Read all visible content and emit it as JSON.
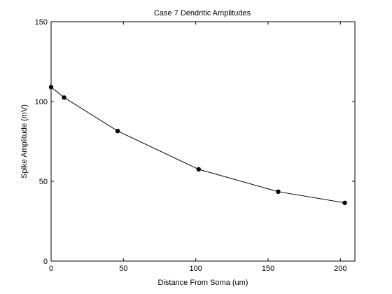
{
  "chart_data": {
    "type": "line",
    "title": "Case 7 Dendritic Amplitudes",
    "xlabel": "Distance From Soma (um)",
    "ylabel": "Spike Amplitude (mV)",
    "xlim": [
      0,
      210
    ],
    "ylim": [
      0,
      150
    ],
    "xticks": [
      "0",
      "50",
      "100",
      "150",
      "200"
    ],
    "yticks": [
      "0",
      "50",
      "100",
      "150"
    ],
    "grid": false,
    "series": [
      {
        "x": [
          0,
          9,
          46,
          102,
          157,
          203
        ],
        "y": [
          109,
          102.5,
          81.5,
          57.5,
          43.5,
          36.5
        ]
      }
    ],
    "colors": {
      "line": "#000000",
      "marker": "#000000",
      "axis": "#000000"
    }
  }
}
